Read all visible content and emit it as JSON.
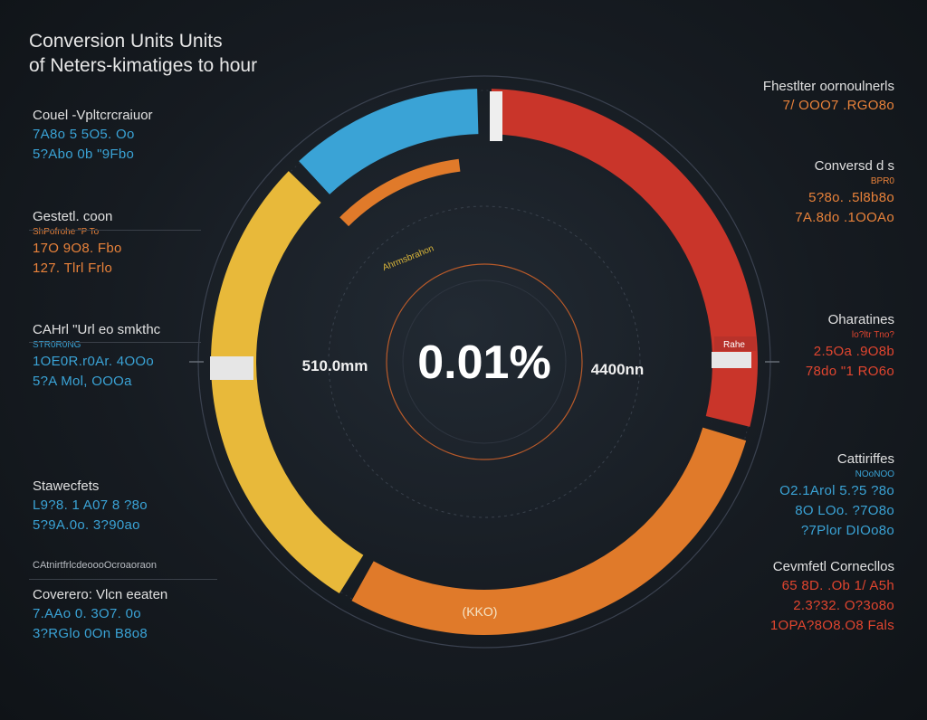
{
  "title": {
    "line1": "Conversion Units Units",
    "line2": "of Neters-kimatiges to hour"
  },
  "colors": {
    "blue": "#3aa3d6",
    "red": "#c9352a",
    "orange": "#e07a2a",
    "yellow": "#e8b93a",
    "background": "#161b21"
  },
  "left_blocks": [
    {
      "head": "Couel -Vpltcrcraiuor",
      "sub": "",
      "values": [
        "7A8o 5 5O5. Oo",
        "5?Abo 0b \"9Fbo"
      ],
      "color": "blue"
    },
    {
      "head": "Gestetl. coon",
      "sub": "ShPofrohe \"P To",
      "values": [
        "17O 9O8. Fbo",
        "127. Tlrl Frlo"
      ],
      "color": "orange"
    },
    {
      "head": "CAHrl \"Url eo smkthc",
      "sub": "STR0R0NG",
      "values": [
        "1OE0R.r0Ar. 4OOo",
        "5?A Mol, OOOa"
      ],
      "color": "blue"
    },
    {
      "head": "Stawecfets",
      "sub": "",
      "values": [
        "L9?8. 1 A07 8 ?8o",
        "5?9A.0o. 3?90ao"
      ],
      "color": "blue"
    },
    {
      "head": "Coverero: Vlcn eeaten",
      "sub": "",
      "values": [
        "7.AAo 0. 3O7. 0o",
        "3?RGlo 0On B8o8"
      ],
      "color": "blue"
    }
  ],
  "left_divider_label": "CAtnirtfrlcdeoooOcroaoraon",
  "right_blocks": [
    {
      "head": "Fhestlter oornoulnerls",
      "sub": "",
      "values": [
        "7/ OOO7 .RGO8o"
      ],
      "color": "orange"
    },
    {
      "head": "Conversd d s",
      "sub": "BPR0",
      "values": [
        "5?8o. .5l8b8o",
        "7A.8do .1OOAo"
      ],
      "color": "orange"
    },
    {
      "head": "Oharatines",
      "sub": "lo?ltr Tno?",
      "values": [
        "2.5Oa .9O8b",
        "78do \"1 RO6o"
      ],
      "color": "red"
    },
    {
      "head": "Cattiriffes",
      "sub": "NOoNOO",
      "values": [
        "O2.1Arol 5.?5 ?8o",
        "8O LOo. ?7O8o",
        "?7Plor DIOo8o"
      ],
      "color": "blue"
    },
    {
      "head": "Cevmfetl Cornecllos",
      "sub": "",
      "values": [
        "65 8D. .Ob 1/ A5h",
        "2.3?32. O?3o8o",
        "1OPA?8O8.O8 Fals"
      ],
      "color": "red"
    }
  ],
  "center": {
    "value": "0.01%",
    "left_label": "510.0mm",
    "right_label": "4400nn",
    "arc_label": "Ahrmsbrahon",
    "bottom_label": "(KKO)",
    "marker_label": "Rahe"
  },
  "chart_data": {
    "type": "pie",
    "variant": "donut",
    "series": [
      {
        "name": "",
        "value": 10.5,
        "color": "#3aa3d6"
      },
      {
        "name": "",
        "value": 25.0,
        "color": "#c9352a"
      },
      {
        "name": "",
        "value": 25.0,
        "color": "#e07a2a"
      },
      {
        "name": "",
        "value": 25.0,
        "color": "#e8b93a"
      }
    ],
    "inner_arc": {
      "value": 10.5,
      "color": "#e07a2a"
    },
    "center_value": "0.01%"
  }
}
